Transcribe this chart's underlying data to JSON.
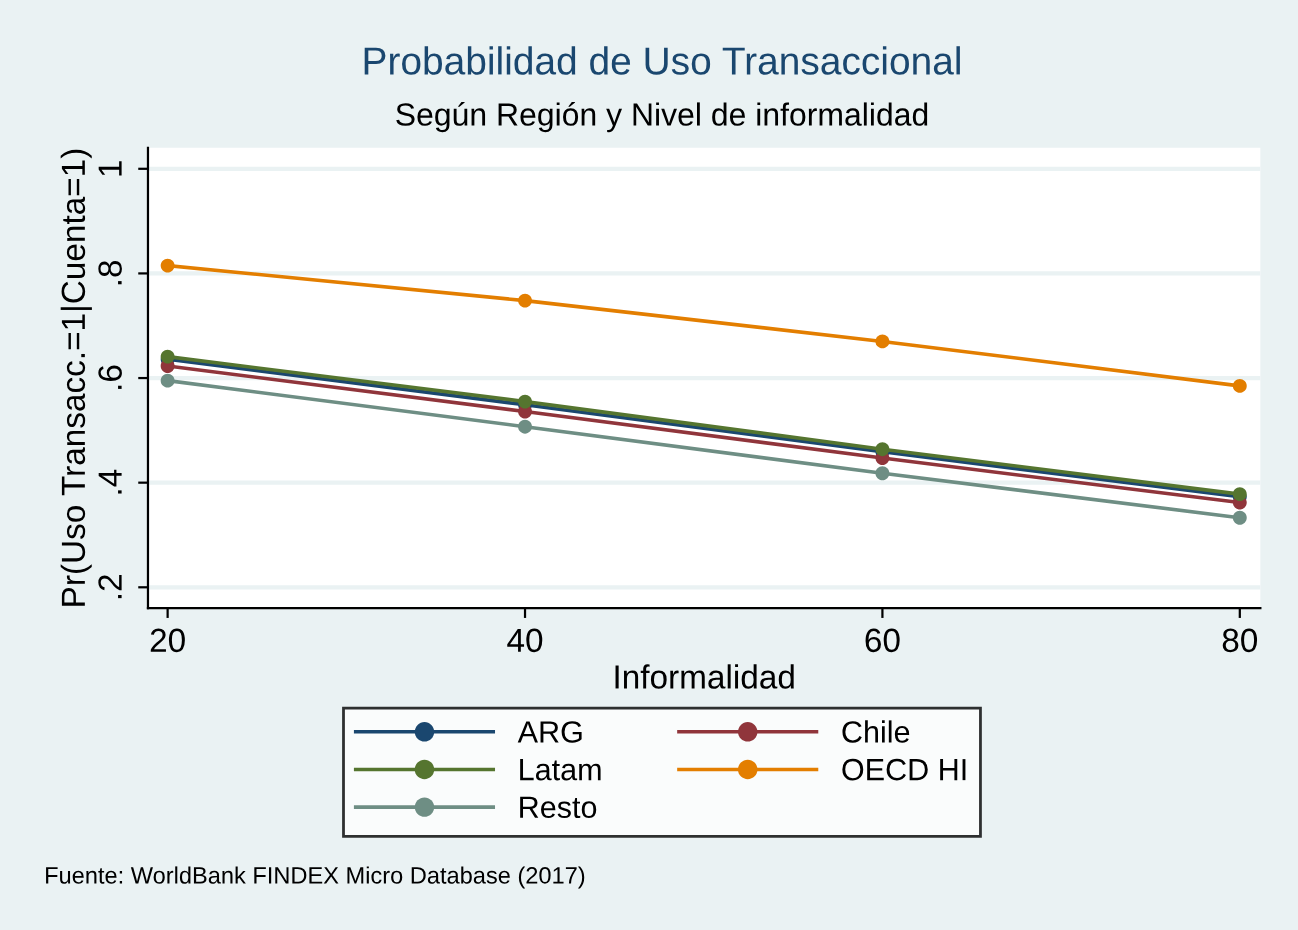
{
  "chart_data": {
    "type": "line",
    "title": "Probabilidad de Uso Transaccional",
    "subtitle": "Según Región y Nivel de informalidad",
    "xlabel": "Informalidad",
    "ylabel": "Pr(Uso Transacc.=1|Cuenta=1)",
    "x": [
      20,
      40,
      60,
      80
    ],
    "series": [
      {
        "name": "ARG",
        "color": "#1a476f",
        "values": [
          0.636,
          0.549,
          0.459,
          0.373
        ]
      },
      {
        "name": "Chile",
        "color": "#90353b",
        "values": [
          0.623,
          0.536,
          0.447,
          0.362
        ]
      },
      {
        "name": "Latam",
        "color": "#55752f",
        "values": [
          0.641,
          0.555,
          0.464,
          0.378
        ]
      },
      {
        "name": "OECD HI",
        "color": "#e37e00",
        "values": [
          0.815,
          0.748,
          0.67,
          0.585
        ]
      },
      {
        "name": "Resto",
        "color": "#6e8e84",
        "values": [
          0.595,
          0.507,
          0.418,
          0.333
        ]
      }
    ],
    "xlim": [
      18.9,
      81.15
    ],
    "ylim": [
      0.16,
      1.04
    ],
    "xticks": [
      20,
      40,
      60,
      80
    ],
    "yticks": [
      {
        "value": 0.2,
        "label": ".2"
      },
      {
        "value": 0.4,
        "label": ".4"
      },
      {
        "value": 0.6,
        "label": ".6"
      },
      {
        "value": 0.8,
        "label": ".8"
      },
      {
        "value": 1,
        "label": "1"
      }
    ],
    "grid": "y",
    "legend": "bottom",
    "marker": "circle",
    "line_style": "solid",
    "annotations": [
      "Fuente: WorldBank FINDEX Micro Database (2017)"
    ]
  }
}
